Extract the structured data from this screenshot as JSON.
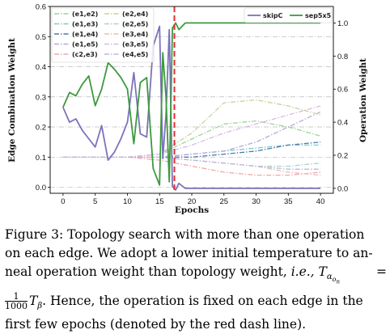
{
  "chart_data": {
    "type": "line",
    "xlabel": "Epochs",
    "ylabel_left": "Edge Combination Weight",
    "ylabel_right": "Operation Weight",
    "xlim": [
      -2,
      42
    ],
    "ylim_left": [
      -0.02,
      0.6
    ],
    "ylim_right": [
      -0.03,
      1.1
    ],
    "x_ticks": [
      0,
      5,
      10,
      15,
      20,
      25,
      30,
      35,
      40
    ],
    "y_left_ticks": [
      0.0,
      0.1,
      0.2,
      0.3,
      0.4,
      0.5,
      0.6
    ],
    "y_right_ticks": [
      0.0,
      0.2,
      0.4,
      0.6,
      0.8,
      1.0
    ],
    "grid": "horizontal dash-dot",
    "vline": {
      "x": 17.3,
      "color": "#e03030",
      "style": "dashed"
    },
    "edge_legend_placement": "top-left",
    "op_legend_placement": "top-right",
    "edge_series": [
      {
        "name": "(e1,e2)",
        "color": "#9bd39b",
        "dash": "dashdot",
        "x": [
          0,
          5,
          10,
          15,
          20,
          25,
          30,
          35,
          40
        ],
        "values": [
          0.1,
          0.1,
          0.1,
          0.11,
          0.16,
          0.21,
          0.22,
          0.2,
          0.17
        ]
      },
      {
        "name": "(e1,e3)",
        "color": "#7fc8c8",
        "dash": "dashdot",
        "x": [
          0,
          5,
          10,
          15,
          20,
          25,
          30,
          35,
          40
        ],
        "values": [
          0.1,
          0.1,
          0.1,
          0.1,
          0.11,
          0.12,
          0.13,
          0.14,
          0.14
        ]
      },
      {
        "name": "(e1,e4)",
        "color": "#4a7aa8",
        "dash": "dashdot",
        "x": [
          0,
          5,
          10,
          15,
          20,
          25,
          30,
          35,
          40
        ],
        "values": [
          0.1,
          0.1,
          0.1,
          0.1,
          0.1,
          0.11,
          0.12,
          0.14,
          0.15
        ]
      },
      {
        "name": "(e1,e5)",
        "color": "#b8a8d8",
        "dash": "dashdot",
        "x": [
          0,
          5,
          10,
          15,
          20,
          25,
          30,
          35,
          40
        ],
        "values": [
          0.1,
          0.1,
          0.1,
          0.1,
          0.11,
          0.12,
          0.15,
          0.2,
          0.25
        ]
      },
      {
        "name": "(c2,e3)",
        "color": "#f0a8a8",
        "dash": "dashdot",
        "x": [
          0,
          5,
          10,
          15,
          20,
          25,
          30,
          35,
          40
        ],
        "values": [
          0.1,
          0.1,
          0.1,
          0.09,
          0.07,
          0.05,
          0.04,
          0.04,
          0.05
        ]
      },
      {
        "name": "(e2,e4)",
        "color": "#c9d29b",
        "dash": "dashdot",
        "x": [
          0,
          5,
          10,
          15,
          20,
          25,
          30,
          35,
          40
        ],
        "values": [
          0.1,
          0.1,
          0.1,
          0.11,
          0.18,
          0.28,
          0.29,
          0.27,
          0.24
        ]
      },
      {
        "name": "(e2,e5)",
        "color": "#aad4c8",
        "dash": "dashdot",
        "x": [
          0,
          5,
          10,
          15,
          20,
          25,
          30,
          35,
          40
        ],
        "values": [
          0.1,
          0.1,
          0.1,
          0.1,
          0.09,
          0.08,
          0.07,
          0.07,
          0.08
        ]
      },
      {
        "name": "(e3,e4)",
        "color": "#f0b8b8",
        "dash": "dashdot",
        "x": [
          0,
          5,
          10,
          15,
          20,
          25,
          30,
          35,
          40
        ],
        "values": [
          0.1,
          0.1,
          0.1,
          0.1,
          0.09,
          0.08,
          0.07,
          0.05,
          0.04
        ]
      },
      {
        "name": "(e3,e5)",
        "color": "#d8b8e8",
        "dash": "dashdot",
        "x": [
          0,
          5,
          10,
          15,
          20,
          25,
          30,
          35,
          40
        ],
        "values": [
          0.1,
          0.1,
          0.1,
          0.11,
          0.14,
          0.18,
          0.21,
          0.24,
          0.27
        ]
      },
      {
        "name": "(e4,e5)",
        "color": "#bcb8e0",
        "dash": "dashdot",
        "x": [
          0,
          5,
          10,
          15,
          20,
          25,
          30,
          35,
          40
        ],
        "values": [
          0.1,
          0.1,
          0.1,
          0.1,
          0.09,
          0.08,
          0.07,
          0.06,
          0.06
        ]
      }
    ],
    "op_series": [
      {
        "name": "skipC",
        "color": "#7b73bb",
        "dash": "solid",
        "x": [
          0,
          1,
          2,
          3,
          4,
          5,
          6,
          7,
          8,
          9,
          10,
          11,
          12,
          13,
          14,
          15,
          15.5,
          16,
          16.5,
          17,
          17.5,
          18,
          19,
          20,
          25,
          30,
          35,
          40
        ],
        "values": [
          0.49,
          0.4,
          0.42,
          0.35,
          0.3,
          0.25,
          0.38,
          0.17,
          0.22,
          0.3,
          0.4,
          0.7,
          0.33,
          0.31,
          0.86,
          0.98,
          0.18,
          0.45,
          0.96,
          0.01,
          -0.01,
          0.03,
          0.0,
          0.0,
          0.0,
          0.0,
          0.0,
          0.0
        ]
      },
      {
        "name": "sep5x5",
        "color": "#3d9a3d",
        "dash": "solid",
        "x": [
          0,
          1,
          2,
          3,
          4,
          5,
          6,
          7,
          8,
          9,
          10,
          11,
          12,
          13,
          14,
          15,
          15.5,
          16,
          16.5,
          17,
          17.5,
          18,
          19,
          20,
          25,
          30,
          35,
          40
        ],
        "values": [
          0.49,
          0.58,
          0.56,
          0.63,
          0.68,
          0.5,
          0.6,
          0.76,
          0.72,
          0.67,
          0.6,
          0.27,
          0.64,
          0.67,
          0.12,
          0.02,
          0.82,
          0.55,
          0.04,
          0.97,
          1.0,
          0.96,
          1.0,
          1.0,
          1.0,
          1.0,
          1.0,
          1.0
        ]
      }
    ]
  },
  "caption": {
    "line1": "Figure 3:  Topology search with more than one operation",
    "line2": "on each edge.  We adopt a lower initial temperature to an-",
    "line3a": "neal operation weight than topology weight, ",
    "ie": "i.e.,",
    "line3b": " T",
    "sub_alpha": "α",
    "sub_on": "o",
    "sub_n": "n",
    "eq": " = ",
    "frac_num": "1",
    "frac_den": "1000",
    "line4a": "T",
    "sub_beta": "β",
    "line4b": ".  Hence, the operation is fixed on each edge in the",
    "line5": "first few epochs (denoted by the red dash line)."
  }
}
